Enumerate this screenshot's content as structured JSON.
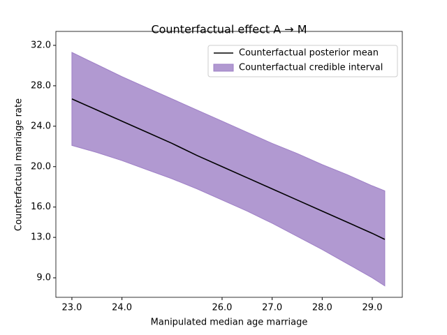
{
  "chart_data": {
    "type": "line_band",
    "title": "Counterfactual effect A → M",
    "x_label": "Manipulated median age marriage",
    "y_label": "Counterfactual marriage rate",
    "x": [
      23,
      23.5,
      24,
      24.5,
      25,
      25.5,
      26,
      26.5,
      27,
      27.5,
      28,
      28.5,
      29,
      29.25
    ],
    "series": [
      {
        "name": "Counterfactual posterior mean",
        "color": "#000000",
        "values": [
          26.7,
          25.6,
          24.5,
          23.4,
          22.3,
          21.1,
          20.0,
          18.9,
          17.8,
          16.7,
          15.6,
          14.5,
          13.4,
          12.8
        ]
      },
      {
        "name": "Counterfactual credible interval",
        "color": "#9e7fc6",
        "lower": [
          22.1,
          21.4,
          20.6,
          19.7,
          18.8,
          17.8,
          16.7,
          15.6,
          14.4,
          13.1,
          11.8,
          10.4,
          9.0,
          8.2
        ],
        "upper": [
          31.3,
          30.1,
          28.9,
          27.8,
          26.7,
          25.6,
          24.5,
          23.4,
          22.3,
          21.3,
          20.2,
          19.2,
          18.1,
          17.6
        ]
      }
    ],
    "xlim": [
      22.68,
      29.6
    ],
    "ylim": [
      7.07,
      33.38
    ],
    "xticks": [
      {
        "value": 23,
        "label": "23.0"
      },
      {
        "value": 24,
        "label": "24.0"
      },
      {
        "value": 26,
        "label": "26.0"
      },
      {
        "value": 27,
        "label": "27.0"
      },
      {
        "value": 28,
        "label": "28.0"
      },
      {
        "value": 29,
        "label": "29.0"
      }
    ],
    "yticks": [
      {
        "value": 32,
        "label": "32.0"
      },
      {
        "value": 28,
        "label": "28.0"
      },
      {
        "value": 24,
        "label": "24.0"
      },
      {
        "value": 20,
        "label": "20.0"
      },
      {
        "value": 16,
        "label": "16.0"
      },
      {
        "value": 13,
        "label": "13.0"
      },
      {
        "value": 9,
        "label": "9.0"
      }
    ],
    "legend": "upper right"
  }
}
